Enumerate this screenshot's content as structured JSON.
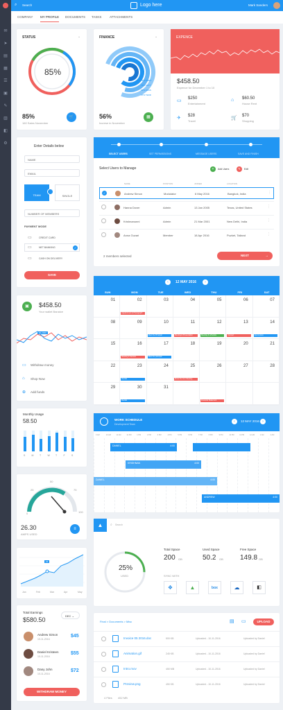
{
  "topbar": {
    "search": "Search",
    "logo": "Logo here",
    "user": "Mark Sanders"
  },
  "tabs": [
    "COMPANY",
    "MY PROFILE",
    "DOCUMENTS",
    "TASKS",
    "ATTACHMENTS"
  ],
  "status": {
    "title": "STATUS",
    "center": "85%",
    "value": "85%",
    "caption": "160 Sales November",
    "progress": 0.85
  },
  "finance": {
    "title": "FINANCE",
    "legend": [
      "49% EMEA",
      "79% CETT",
      "99% ADAS",
      "67% TEDD"
    ],
    "value": "56%",
    "caption": "Increse in November"
  },
  "expence": {
    "title": "EXPENCE",
    "amount": "$458.50",
    "caption": "Expence for December 1 to 10",
    "items": [
      {
        "v": "$250",
        "l": "Entertainment",
        "icon": "card-icon"
      },
      {
        "v": "$60.50",
        "l": "House Rent",
        "icon": "home-icon"
      },
      {
        "v": "$28",
        "l": "Travel",
        "icon": "plane-icon"
      },
      {
        "v": "$70",
        "l": "Shopping",
        "icon": "cart-icon"
      }
    ]
  },
  "form": {
    "title": "Enter Details below",
    "name": "NAME",
    "email": "EMAIL",
    "team": "TEAM",
    "single": "SINGLE",
    "members": "NUMBER OF MEMBERS",
    "payment": "PAYMENT MODE",
    "credit": "CREDIT CARD",
    "net": "NET BANKING",
    "cash": "CASH ON DELIVERY",
    "save": "SAVE"
  },
  "wizard": {
    "steps": [
      "SELECT USERS",
      "SET PERMISSIONS",
      "MESSAGE USERS",
      "SAVE AND FINISH"
    ],
    "title": "Select Users to Manage",
    "add": "Add Users",
    "edit": "Edit",
    "cols": [
      "NAME",
      "POSITION",
      "JOINED",
      "LOCATION"
    ],
    "rows": [
      [
        "Andrew Simon",
        "Modulator",
        "6 May 2016",
        "Bangkok, India"
      ],
      [
        "Hanna Dover",
        "Admin",
        "13 Jan 2005",
        "Texas, United States"
      ],
      [
        "Krishnanunni",
        "Admin",
        "21 Mar 2001",
        "New Delhi, India"
      ],
      [
        "Anna Guvari",
        "Member",
        "18 Apr 2016",
        "Puzket, Tailand"
      ]
    ],
    "selected": "2 members selected",
    "next": "NEXT"
  },
  "wallet": {
    "amount": "$458.50",
    "caption": "Your wallet Banalce",
    "bubble": "$4,2000",
    "links": [
      "Withdraw money",
      "Shop Now",
      "Add funds"
    ]
  },
  "calendar": {
    "month": "12 MAY 2016",
    "days": [
      "SUN",
      "MON",
      "TUE",
      "WED",
      "THU",
      "FRI",
      "SAT"
    ],
    "weeks": [
      [
        "",
        "01",
        "02",
        "03",
        "04",
        "05",
        "06",
        "07"
      ],
      [
        "07",
        "08",
        "09",
        "10",
        "11",
        "12",
        "13",
        "14"
      ],
      [
        "14",
        "15",
        "16",
        "17",
        "18",
        "19",
        "20",
        "21"
      ],
      [
        "21",
        "22",
        "23",
        "24",
        "25",
        "26",
        "27",
        "28"
      ],
      [
        "28",
        "29",
        "30",
        "31",
        "",
        "",
        "",
        ""
      ]
    ],
    "events": [
      "Appointment & Photograph",
      "Meet the Principal",
      "Meeting & Presentation",
      "Meeting & schedule",
      "Concert",
      "Event plans",
      "Meeting & Session",
      "Meet the principal",
      "Recital",
      "Close the Invs Meeting",
      "Recital",
      "Financial Statement"
    ]
  },
  "usage": {
    "title": "Monthly Usage",
    "value": "58.50",
    "days": [
      "S",
      "M",
      "T",
      "W",
      "T",
      "F",
      "S"
    ],
    "bars": [
      0.7,
      0.8,
      0.6,
      0.75,
      0.9,
      0.7,
      0.65
    ]
  },
  "gauge": {
    "ticks": [
      "0",
      "25",
      "50",
      "75",
      "100"
    ],
    "value": "26.30",
    "caption": "AMPS USED"
  },
  "linechart": {
    "labels": [
      "Jan",
      "Feb",
      "Mar",
      "Apr",
      "May"
    ],
    "bubble": "22"
  },
  "schedule": {
    "title": "WORK SCHEDULE",
    "subtitle": "Development Team",
    "month": "12 MAY 2016",
    "hours": [
      "9 AM",
      "10 AM",
      "11 AM",
      "12 PM",
      "1 PM",
      "2 PM",
      "3 PM",
      "4 PM",
      "5 PM",
      "6 PM",
      "7 PM",
      "8 PM",
      "9 PM",
      "10 PM",
      "11 PM",
      "12 AM",
      "1 AM",
      "2 AM"
    ],
    "bars": [
      {
        "n": "DANIEL",
        "t": "4:00"
      },
      {
        "n": "KRISHNAN",
        "t": "4:00"
      },
      {
        "n": "DANIEL",
        "t": "4:00"
      },
      {
        "n": "ANDREW",
        "t": "4:00"
      }
    ]
  },
  "earnings": {
    "title": "Total Earnings",
    "amount": "$580.50",
    "month": "DEC",
    "people": [
      {
        "n": "Andrew Simon",
        "d": "10-11-2016",
        "v": "$45"
      },
      {
        "n": "Daniel Kristeen",
        "d": "10-11-2016",
        "v": "$55"
      },
      {
        "n": "Dany John",
        "d": "10-11-2016",
        "v": "$72"
      }
    ],
    "btn": "WITHDRAW MONEY"
  },
  "storage": {
    "search": "Search",
    "used": "25%",
    "usedlbl": "USED",
    "sync": "SYNC WITH",
    "cols": [
      {
        "l": "Total Space",
        "v": "200",
        "u": "GB"
      },
      {
        "l": "Used Space",
        "v": "50.2",
        "u": "GB"
      },
      {
        "l": "Free Space",
        "v": "149.8",
        "u": "GB"
      }
    ]
  },
  "files": {
    "crumb": "Final > Documents > Misc",
    "rows": [
      [
        "Invoice 05 2016.doc",
        "500 KB",
        "Uploaded - 10-11-2016",
        "Uploaded by Daniel"
      ],
      [
        "Animation.gif",
        "245 KB",
        "Uploaded - 10-11-2016",
        "Uploaded by Daniel"
      ],
      [
        "Intro.mov",
        "450 MB",
        "Uploaded - 10-11-2016",
        "Uploaded by Daniel"
      ],
      [
        "Preview.png",
        "450 KB",
        "Uploaded - 10-11-2016",
        "Uploaded by Daniel"
      ]
    ],
    "footer": [
      "4 Files",
      "452 MB"
    ],
    "upload": "UPLOAD"
  }
}
